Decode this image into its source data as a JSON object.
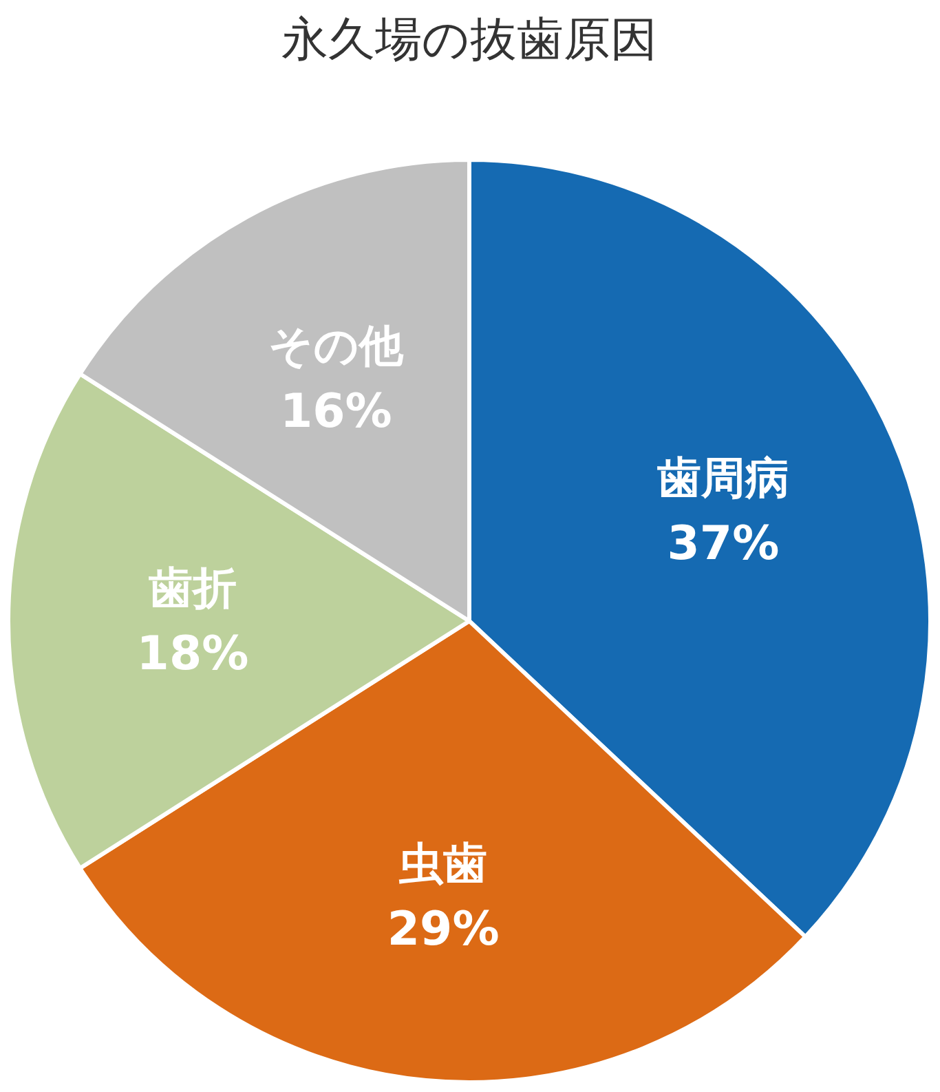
{
  "chart_data": {
    "type": "pie",
    "title": "永久場の抜歯原因",
    "categories": [
      "歯周病",
      "虫歯",
      "歯折",
      "その他"
    ],
    "values": [
      37,
      29,
      18,
      16
    ],
    "colors": [
      "#156ab2",
      "#dc6a15",
      "#bdd19c",
      "#c0c0c0"
    ],
    "value_labels": [
      "37%",
      "29%",
      "18%",
      "16%"
    ]
  }
}
